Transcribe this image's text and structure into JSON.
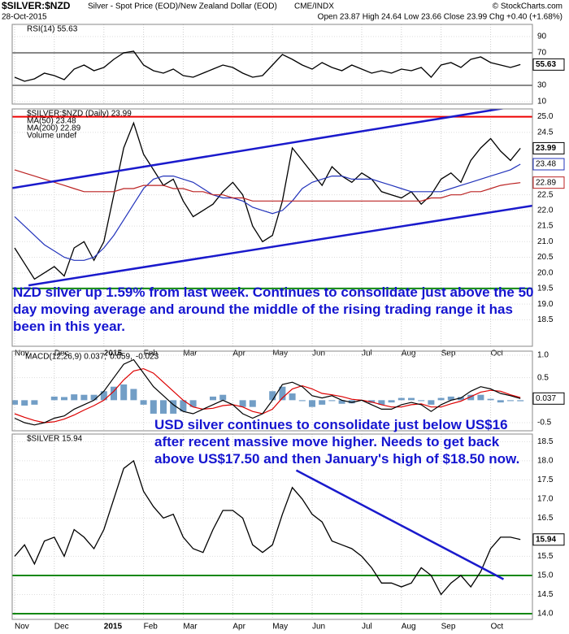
{
  "header": {
    "symbol": "$SILVER:$NZD",
    "description": "Silver - Spot Price (EOD)/New Zealand Dollar (EOD)",
    "exchange": "CME/INDX",
    "copyright": "© StockCharts.com",
    "date": "28-Oct-2015",
    "quote": "Open 23.87 High 24.64 Low 23.66 Close 23.99 Chg +0.40 (+1.68%)"
  },
  "chart_data": [
    {
      "type": "line",
      "title": "RSI(14) 55.63",
      "ylim": [
        7,
        105
      ],
      "yticks": [
        90,
        70,
        30,
        10
      ],
      "hlines": [
        {
          "value": 70,
          "color": "#888888"
        },
        {
          "value": 30,
          "color": "#888888"
        }
      ],
      "series": [
        {
          "color": "#000000",
          "box": true,
          "values": [
            40,
            35,
            38,
            45,
            42,
            37,
            50,
            55,
            48,
            52,
            62,
            70,
            72,
            55,
            48,
            45,
            50,
            42,
            40,
            45,
            50,
            55,
            52,
            45,
            40,
            42,
            55,
            68,
            62,
            55,
            50,
            58,
            52,
            48,
            55,
            50,
            45,
            48,
            45,
            50,
            48,
            52,
            40,
            55,
            58,
            52,
            62,
            65,
            58,
            55,
            52,
            55.63
          ]
        }
      ]
    },
    {
      "type": "line",
      "ylim": [
        17.65,
        25.25
      ],
      "yticks": [
        {
          "value": 25,
          "label": "25.0"
        },
        24.5,
        22.5,
        {
          "value": 22,
          "label": "22.0"
        },
        21.5,
        {
          "value": 21,
          "label": "21.0"
        },
        20.5,
        {
          "value": 20,
          "label": "20.0"
        },
        19.5,
        {
          "value": 19,
          "label": "19.0"
        },
        18.5
      ],
      "categories": [
        "Nov",
        null,
        null,
        null,
        "Dec",
        null,
        null,
        null,
        null,
        "2015",
        null,
        null,
        null,
        "Feb",
        null,
        null,
        null,
        "Mar",
        null,
        null,
        null,
        null,
        "Apr",
        null,
        null,
        null,
        "May",
        null,
        null,
        null,
        "Jun",
        null,
        null,
        null,
        null,
        "Jul",
        null,
        null,
        null,
        "Aug",
        null,
        null,
        null,
        "Sep",
        null,
        null,
        null,
        null,
        "Oct",
        null,
        null,
        null
      ],
      "series": [
        {
          "name": "$SILVER:$NZD (Daily) 23.99",
          "color": "#000000",
          "box": true,
          "values": [
            20.8,
            20.3,
            19.8,
            20.0,
            20.2,
            19.9,
            20.8,
            21.0,
            20.4,
            21.0,
            22.5,
            24.0,
            24.8,
            23.8,
            23.3,
            22.8,
            23.0,
            22.3,
            21.8,
            22.0,
            22.2,
            22.6,
            22.9,
            22.5,
            21.5,
            21.0,
            21.2,
            22.3,
            24.0,
            23.6,
            23.2,
            22.8,
            23.4,
            23.1,
            22.9,
            23.2,
            23.0,
            22.6,
            22.5,
            22.4,
            22.6,
            22.2,
            22.5,
            23.0,
            23.2,
            22.9,
            23.6,
            24.0,
            24.3,
            23.9,
            23.6,
            23.99
          ]
        },
        {
          "name": "MA(50) 23.48",
          "color": "#2233bb",
          "box": true,
          "values": [
            21.8,
            21.5,
            21.2,
            20.9,
            20.7,
            20.5,
            20.4,
            20.4,
            20.5,
            20.8,
            21.2,
            21.7,
            22.2,
            22.7,
            23.0,
            23.1,
            23.1,
            23.0,
            22.9,
            22.7,
            22.5,
            22.4,
            22.4,
            22.3,
            22.1,
            22.0,
            21.9,
            22.0,
            22.3,
            22.7,
            22.9,
            23.0,
            23.1,
            23.1,
            23.0,
            23.0,
            23.0,
            22.9,
            22.8,
            22.7,
            22.6,
            22.6,
            22.6,
            22.6,
            22.7,
            22.8,
            22.9,
            23.0,
            23.1,
            23.2,
            23.3,
            23.48
          ]
        },
        {
          "name": "MA(200) 22.89",
          "color": "#bb2222",
          "box": true,
          "values": [
            23.3,
            23.2,
            23.1,
            23.0,
            22.9,
            22.8,
            22.7,
            22.6,
            22.6,
            22.6,
            22.6,
            22.7,
            22.7,
            22.8,
            22.8,
            22.8,
            22.7,
            22.7,
            22.6,
            22.6,
            22.5,
            22.5,
            22.4,
            22.4,
            22.3,
            22.3,
            22.3,
            22.3,
            22.3,
            22.3,
            22.3,
            22.3,
            22.3,
            22.3,
            22.3,
            22.3,
            22.3,
            22.3,
            22.3,
            22.3,
            22.3,
            22.3,
            22.4,
            22.4,
            22.5,
            22.5,
            22.6,
            22.6,
            22.7,
            22.8,
            22.85,
            22.89
          ]
        }
      ],
      "legend_note": "Volume undef",
      "hlines": [
        {
          "value": 25.0,
          "color": "#ee0000"
        },
        {
          "value": 19.5,
          "color": "#118811"
        }
      ],
      "trendlines": [
        {
          "color": "#1a1acc",
          "from": {
            "x": -1.5,
            "y": 22.65
          },
          "to": {
            "x": 52.2,
            "y": 25.42
          }
        },
        {
          "color": "#1a1acc",
          "from": {
            "x": 1.4,
            "y": 19.6
          },
          "to": {
            "x": 52.2,
            "y": 22.15
          }
        }
      ],
      "annotation": "NZD silver up 1.59% from last week. Continues to consolidate just above the 50 day moving average and around the middle of the rising trading range it has been in this year."
    },
    {
      "type": "line",
      "ylim": [
        -0.68,
        1.09
      ],
      "yticks": [
        {
          "value": 1,
          "label": "1.0"
        },
        0.5,
        -0.5
      ],
      "legend": [
        {
          "text": "MACD(12,26,9) 0.037,",
          "color": "#000000"
        },
        {
          "text": "0.059,",
          "color": "#dd0000"
        },
        {
          "text": "-0.023",
          "color": "#3366cc"
        }
      ],
      "series": [
        {
          "kind": "bar",
          "color": "#4f86b8",
          "values": [
            -0.1,
            -0.12,
            -0.1,
            0,
            0.08,
            0.07,
            0.13,
            0.12,
            0.12,
            0.2,
            0.3,
            0.35,
            0.25,
            -0.1,
            -0.3,
            -0.3,
            -0.3,
            -0.25,
            -0.15,
            0,
            0.08,
            0.12,
            0,
            -0.15,
            -0.15,
            0,
            0.2,
            0.3,
            0.15,
            -0.02,
            -0.15,
            -0.1,
            -0.02,
            -0.08,
            -0.07,
            0,
            -0.06,
            -0.1,
            -0.05,
            0.05,
            0.05,
            -0.02,
            -0.1,
            0.05,
            0.08,
            0.07,
            0.12,
            0.12,
            0.03,
            -0.05,
            -0.02,
            -0.023
          ]
        },
        {
          "color": "#dd0000",
          "values": [
            -0.3,
            -0.38,
            -0.45,
            -0.5,
            -0.48,
            -0.42,
            -0.33,
            -0.22,
            -0.12,
            0.0,
            0.2,
            0.45,
            0.65,
            0.7,
            0.6,
            0.4,
            0.2,
            0.0,
            -0.15,
            -0.2,
            -0.18,
            -0.12,
            -0.1,
            -0.15,
            -0.25,
            -0.3,
            -0.2,
            0.05,
            0.25,
            0.32,
            0.25,
            0.15,
            0.12,
            0.08,
            0.02,
            0.0,
            -0.04,
            -0.1,
            -0.15,
            -0.15,
            -0.1,
            -0.08,
            -0.15,
            -0.15,
            -0.08,
            -0.02,
            0.08,
            0.18,
            0.22,
            0.2,
            0.12,
            0.059
          ]
        },
        {
          "color": "#000000",
          "box": true,
          "values": [
            -0.4,
            -0.5,
            -0.55,
            -0.5,
            -0.4,
            -0.35,
            -0.2,
            -0.1,
            0.0,
            0.2,
            0.5,
            0.8,
            0.9,
            0.6,
            0.3,
            0.1,
            -0.1,
            -0.25,
            -0.3,
            -0.2,
            -0.1,
            0.0,
            -0.1,
            -0.3,
            -0.4,
            -0.3,
            0.0,
            0.35,
            0.4,
            0.3,
            0.1,
            0.05,
            0.1,
            0.0,
            -0.05,
            0.0,
            -0.1,
            -0.2,
            -0.2,
            -0.1,
            -0.05,
            -0.1,
            -0.25,
            -0.1,
            0.0,
            0.05,
            0.2,
            0.3,
            0.25,
            0.15,
            0.1,
            0.037
          ]
        }
      ]
    },
    {
      "type": "line",
      "title": "$SILVER 15.94",
      "ylim": [
        13.85,
        18.7
      ],
      "yticks": [
        18.5,
        {
          "value": 18,
          "label": "18.0"
        },
        17.5,
        {
          "value": 17,
          "label": "17.0"
        },
        16.5,
        15.5,
        {
          "value": 15,
          "label": "15.0"
        },
        14.5,
        {
          "value": 14,
          "label": "14.0"
        }
      ],
      "categories": [
        "Nov",
        null,
        null,
        null,
        "Dec",
        null,
        null,
        null,
        null,
        "2015",
        null,
        null,
        null,
        "Feb",
        null,
        null,
        null,
        "Mar",
        null,
        null,
        null,
        null,
        "Apr",
        null,
        null,
        null,
        "May",
        null,
        null,
        null,
        "Jun",
        null,
        null,
        null,
        null,
        "Jul",
        null,
        null,
        null,
        "Aug",
        null,
        null,
        null,
        "Sep",
        null,
        null,
        null,
        null,
        "Oct",
        null,
        null,
        null
      ],
      "series": [
        {
          "color": "#000000",
          "box": true,
          "values": [
            15.5,
            15.8,
            15.3,
            15.9,
            16.0,
            15.5,
            16.2,
            16.0,
            15.7,
            16.2,
            17.0,
            17.8,
            18.0,
            17.2,
            16.8,
            16.5,
            16.6,
            16.0,
            15.7,
            15.6,
            16.2,
            16.7,
            16.7,
            16.5,
            15.8,
            15.6,
            15.8,
            16.6,
            17.3,
            17.0,
            16.6,
            16.4,
            15.9,
            15.8,
            15.7,
            15.5,
            15.2,
            14.8,
            14.8,
            14.7,
            14.8,
            15.2,
            15.0,
            14.5,
            14.8,
            15.0,
            14.7,
            15.1,
            15.7,
            16.0,
            16.0,
            15.94
          ]
        }
      ],
      "hlines": [
        {
          "value": 15.0,
          "color": "#118811"
        },
        {
          "value": 14.0,
          "color": "#118811"
        }
      ],
      "trendlines": [
        {
          "color": "#1a1acc",
          "from": {
            "x": 28.4,
            "y": 17.75
          },
          "to": {
            "x": 49.3,
            "y": 14.9
          }
        }
      ],
      "annotation": "USD silver continues to consolidate just below US$16 after recent massive move higher. Needs to get back above US$17.50 and then January's high of $18.50 now."
    }
  ]
}
